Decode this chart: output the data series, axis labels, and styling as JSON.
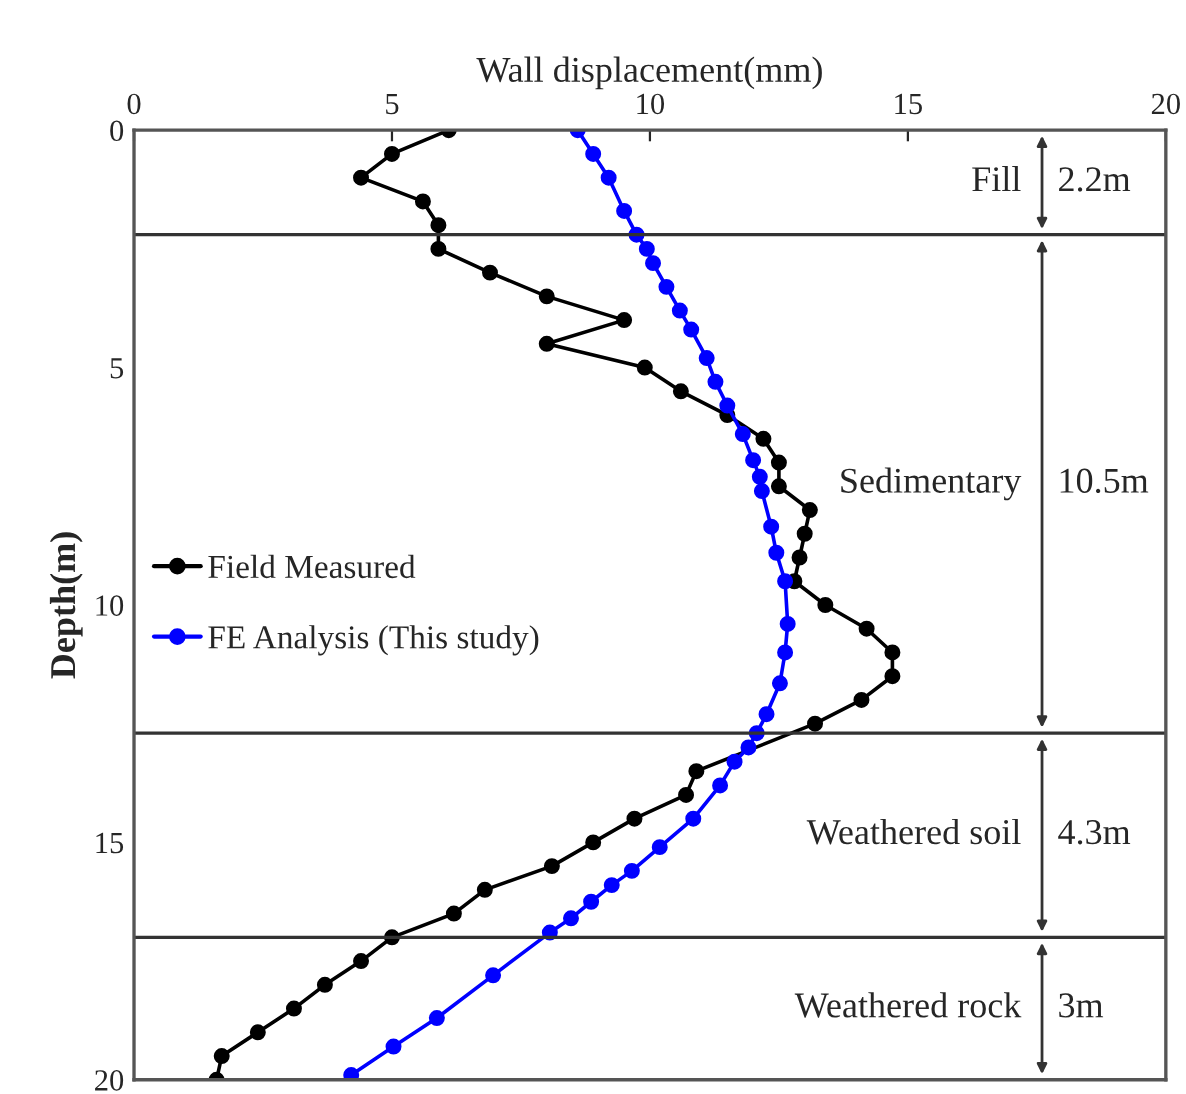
{
  "chart_data": {
    "type": "line",
    "xlabel": "Wall displacement(mm)",
    "ylabel": "Depth(m)",
    "xlim": [
      0,
      20
    ],
    "xticks": [
      0,
      5,
      10,
      15,
      20
    ],
    "ylim": [
      20,
      0
    ],
    "yticks": [
      0,
      5,
      10,
      15,
      20
    ],
    "grid": false,
    "legend": "left",
    "marker": "circle",
    "line_style": "solid",
    "series": [
      {
        "name": "Field Measured",
        "color": "#000000",
        "x": [
          6.1,
          5.0,
          4.4,
          5.6,
          5.9,
          5.9,
          6.9,
          8.0,
          9.5,
          8.0,
          9.9,
          10.6,
          11.5,
          12.2,
          12.5,
          12.5,
          13.1,
          13.0,
          12.9,
          12.8,
          13.4,
          14.2,
          14.7,
          14.7,
          14.1,
          13.2,
          10.9,
          10.7,
          9.7,
          8.9,
          8.1,
          6.8,
          6.2,
          5.0,
          4.4,
          3.7,
          3.1,
          2.4,
          1.7,
          1.6
        ],
        "values": [
          0,
          0.5,
          1.0,
          1.5,
          2.0,
          2.5,
          3.0,
          3.5,
          4.0,
          4.5,
          5.0,
          5.5,
          6.0,
          6.5,
          7.0,
          7.5,
          8.0,
          8.5,
          9.0,
          9.5,
          10.0,
          10.5,
          11.0,
          11.5,
          12.0,
          12.5,
          13.5,
          14.0,
          14.5,
          15.0,
          15.5,
          16.0,
          16.5,
          17.0,
          17.5,
          18.0,
          18.5,
          19.0,
          19.5,
          20.0
        ]
      },
      {
        "name": "FE Analysis (This study)",
        "color": "#0000ff",
        "x": [
          8.6,
          8.9,
          9.2,
          9.5,
          9.74,
          9.94,
          10.06,
          10.32,
          10.58,
          10.8,
          11.1,
          11.27,
          11.5,
          11.8,
          12.0,
          12.13,
          12.17,
          12.35,
          12.45,
          12.62,
          12.67,
          12.62,
          12.52,
          12.26,
          12.07,
          11.91,
          11.64,
          11.36,
          10.84,
          10.19,
          9.65,
          9.26,
          8.86,
          8.47,
          8.06,
          6.96,
          5.87,
          5.03,
          4.21
        ],
        "values": [
          0,
          0.5,
          1.0,
          1.7,
          2.2,
          2.5,
          2.8,
          3.3,
          3.8,
          4.2,
          4.8,
          5.3,
          5.8,
          6.4,
          6.95,
          7.3,
          7.6,
          8.35,
          8.9,
          9.5,
          10.4,
          11.0,
          11.65,
          12.3,
          12.7,
          13.0,
          13.3,
          13.8,
          14.5,
          15.1,
          15.6,
          15.9,
          16.25,
          16.6,
          16.9,
          17.8,
          18.7,
          19.3,
          19.9
        ]
      }
    ],
    "ref_lines": [
      {
        "axis": "y",
        "value": 2.2
      },
      {
        "axis": "y",
        "value": 12.7
      },
      {
        "axis": "y",
        "value": 17
      }
    ],
    "annotations": [
      "Fill",
      "2.2m",
      "Sedimentary",
      "10.5m",
      "Weathered soil",
      "4.3m",
      "Weathered rock",
      "3m"
    ]
  }
}
